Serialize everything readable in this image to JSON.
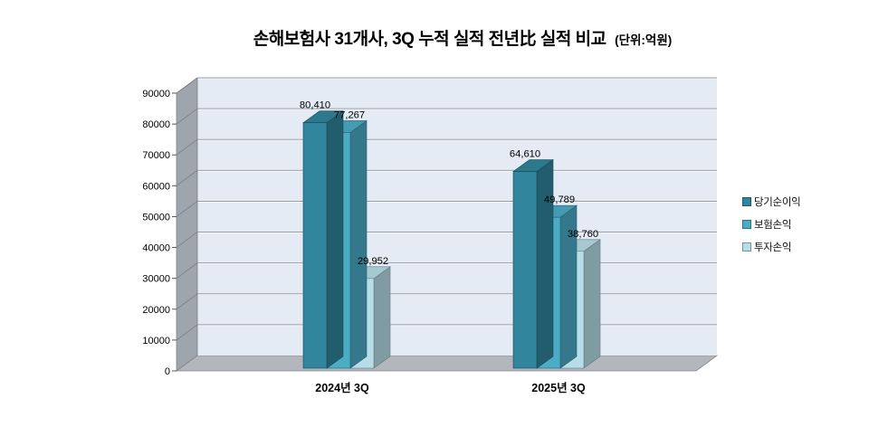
{
  "page": {
    "background": "#ffffff"
  },
  "chart_data": {
    "type": "bar",
    "style": "3d-clustered-column",
    "title": "손해보험사 31개사, 3Q 누적 실적 전년比 실적 비교",
    "unit_label": "(단위:억원)",
    "categories": [
      "2024년 3Q",
      "2025년 3Q"
    ],
    "series": [
      {
        "name": "당기순이익",
        "color": "#31859C",
        "values": [
          80410,
          64610
        ]
      },
      {
        "name": "보험손익",
        "color": "#4BACC6",
        "values": [
          77267,
          49789
        ]
      },
      {
        "name": "투자손익",
        "color": "#B7DEE8",
        "values": [
          29952,
          38760
        ]
      }
    ],
    "ylim": [
      0,
      90000
    ],
    "ytick_step": 10000,
    "grid": true,
    "legend_position": "right",
    "colors": {
      "back_wall": "#E4EBF4",
      "side_wall": "#9EA5AD",
      "floor": "#B3B7BD",
      "gridline": "#999EA4",
      "wall_edge": "#7A7F86",
      "text": "#000000"
    }
  }
}
